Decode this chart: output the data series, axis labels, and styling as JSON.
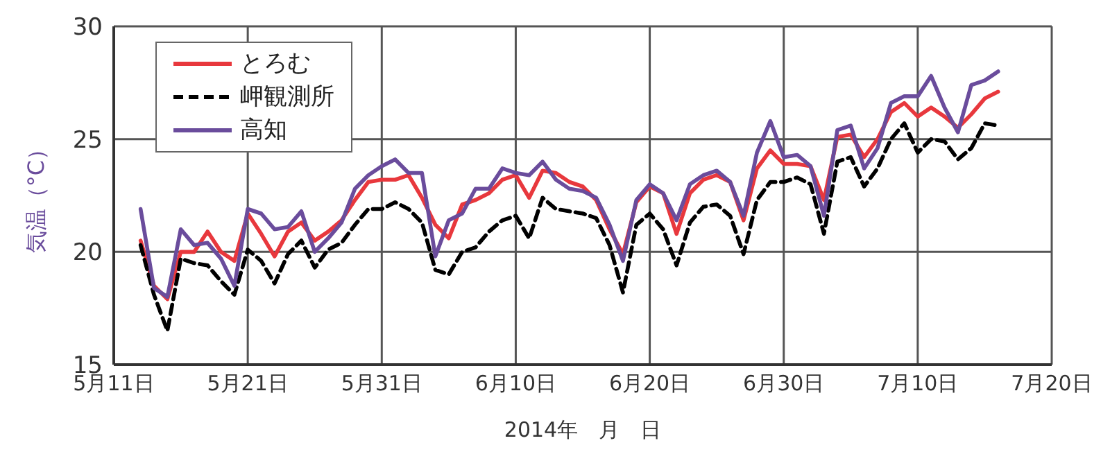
{
  "chart_data": {
    "type": "line",
    "xlabel": "2014年　月　日",
    "ylabel": "気温（°C）",
    "xlim": [
      "2014-05-11",
      "2014-07-20"
    ],
    "xticks": [
      {
        "value": "2014-05-11",
        "label": "5月11日"
      },
      {
        "value": "2014-05-21",
        "label": "5月21日"
      },
      {
        "value": "2014-05-31",
        "label": "5月31日"
      },
      {
        "value": "2014-06-10",
        "label": "6月10日"
      },
      {
        "value": "2014-06-20",
        "label": "6月20日"
      },
      {
        "value": "2014-06-30",
        "label": "6月30日"
      },
      {
        "value": "2014-07-10",
        "label": "7月10日"
      },
      {
        "value": "2014-07-20",
        "label": "7月20日"
      }
    ],
    "ylim": [
      15,
      30
    ],
    "yticks": [
      15,
      20,
      25,
      30
    ],
    "grid": true,
    "legend": "top left",
    "x": [
      "2014-05-13",
      "2014-05-14",
      "2014-05-15",
      "2014-05-16",
      "2014-05-17",
      "2014-05-18",
      "2014-05-19",
      "2014-05-20",
      "2014-05-21",
      "2014-05-22",
      "2014-05-23",
      "2014-05-24",
      "2014-05-25",
      "2014-05-26",
      "2014-05-27",
      "2014-05-28",
      "2014-05-29",
      "2014-05-30",
      "2014-05-31",
      "2014-06-01",
      "2014-06-02",
      "2014-06-03",
      "2014-06-04",
      "2014-06-05",
      "2014-06-06",
      "2014-06-07",
      "2014-06-08",
      "2014-06-09",
      "2014-06-10",
      "2014-06-11",
      "2014-06-12",
      "2014-06-13",
      "2014-06-14",
      "2014-06-15",
      "2014-06-16",
      "2014-06-17",
      "2014-06-18",
      "2014-06-19",
      "2014-06-20",
      "2014-06-21",
      "2014-06-22",
      "2014-06-23",
      "2014-06-24",
      "2014-06-25",
      "2014-06-26",
      "2014-06-27",
      "2014-06-28",
      "2014-06-29",
      "2014-06-30",
      "2014-07-01",
      "2014-07-02",
      "2014-07-03",
      "2014-07-04",
      "2014-07-05",
      "2014-07-06",
      "2014-07-07",
      "2014-07-08",
      "2014-07-09",
      "2014-07-10",
      "2014-07-11",
      "2014-07-12",
      "2014-07-13",
      "2014-07-14",
      "2014-07-15",
      "2014-07-16"
    ],
    "series": [
      {
        "name": "とろむ",
        "color": "#e8383d",
        "line_style": "solid",
        "values": [
          20.5,
          18.5,
          17.9,
          20.0,
          20.0,
          20.9,
          20.0,
          19.6,
          21.7,
          20.8,
          19.8,
          20.9,
          21.3,
          20.5,
          20.9,
          21.4,
          22.3,
          23.1,
          23.2,
          23.2,
          23.4,
          22.4,
          21.2,
          20.6,
          22.1,
          22.3,
          22.6,
          23.2,
          23.4,
          22.4,
          23.6,
          23.5,
          23.1,
          22.9,
          22.3,
          21.0,
          19.9,
          22.2,
          22.9,
          22.6,
          20.8,
          22.6,
          23.2,
          23.4,
          23.1,
          21.4,
          23.7,
          24.5,
          23.9,
          23.9,
          23.8,
          22.3,
          25.1,
          25.2,
          24.2,
          25.0,
          26.2,
          26.6,
          26.0,
          26.4,
          26.0,
          25.5,
          26.1,
          26.8,
          27.1
        ]
      },
      {
        "name": "岬観測所",
        "color": "#000000",
        "line_style": "dashed",
        "values": [
          20.3,
          18.1,
          16.5,
          19.7,
          19.5,
          19.4,
          18.7,
          18.1,
          20.1,
          19.6,
          18.6,
          19.9,
          20.5,
          19.3,
          20.1,
          20.4,
          21.2,
          21.9,
          21.9,
          22.2,
          21.9,
          21.3,
          19.2,
          19.0,
          20.0,
          20.2,
          20.9,
          21.4,
          21.6,
          20.6,
          22.4,
          21.9,
          21.8,
          21.7,
          21.5,
          20.3,
          18.2,
          21.2,
          21.7,
          21.0,
          19.4,
          21.3,
          22.0,
          22.1,
          21.6,
          19.9,
          22.3,
          23.1,
          23.1,
          23.3,
          23.0,
          20.8,
          24.0,
          24.2,
          22.9,
          23.7,
          25.0,
          25.7,
          24.4,
          25.0,
          24.9,
          24.1,
          24.6,
          25.7,
          25.6
        ]
      },
      {
        "name": "高知",
        "color": "#6a4c9c",
        "line_style": "solid",
        "values": [
          21.9,
          18.4,
          18.0,
          21.0,
          20.3,
          20.4,
          19.7,
          18.5,
          21.9,
          21.7,
          21.0,
          21.1,
          21.8,
          20.0,
          20.6,
          21.3,
          22.8,
          23.4,
          23.8,
          24.1,
          23.5,
          23.5,
          19.8,
          21.4,
          21.7,
          22.8,
          22.8,
          23.7,
          23.5,
          23.4,
          24.0,
          23.2,
          22.8,
          22.7,
          22.4,
          21.2,
          19.6,
          22.3,
          23.0,
          22.6,
          21.4,
          23.0,
          23.4,
          23.6,
          23.1,
          21.6,
          24.4,
          25.8,
          24.2,
          24.3,
          23.8,
          21.6,
          25.4,
          25.6,
          23.7,
          24.6,
          26.6,
          26.9,
          26.9,
          27.8,
          26.4,
          25.3,
          27.4,
          27.6,
          28.0
        ]
      }
    ]
  }
}
